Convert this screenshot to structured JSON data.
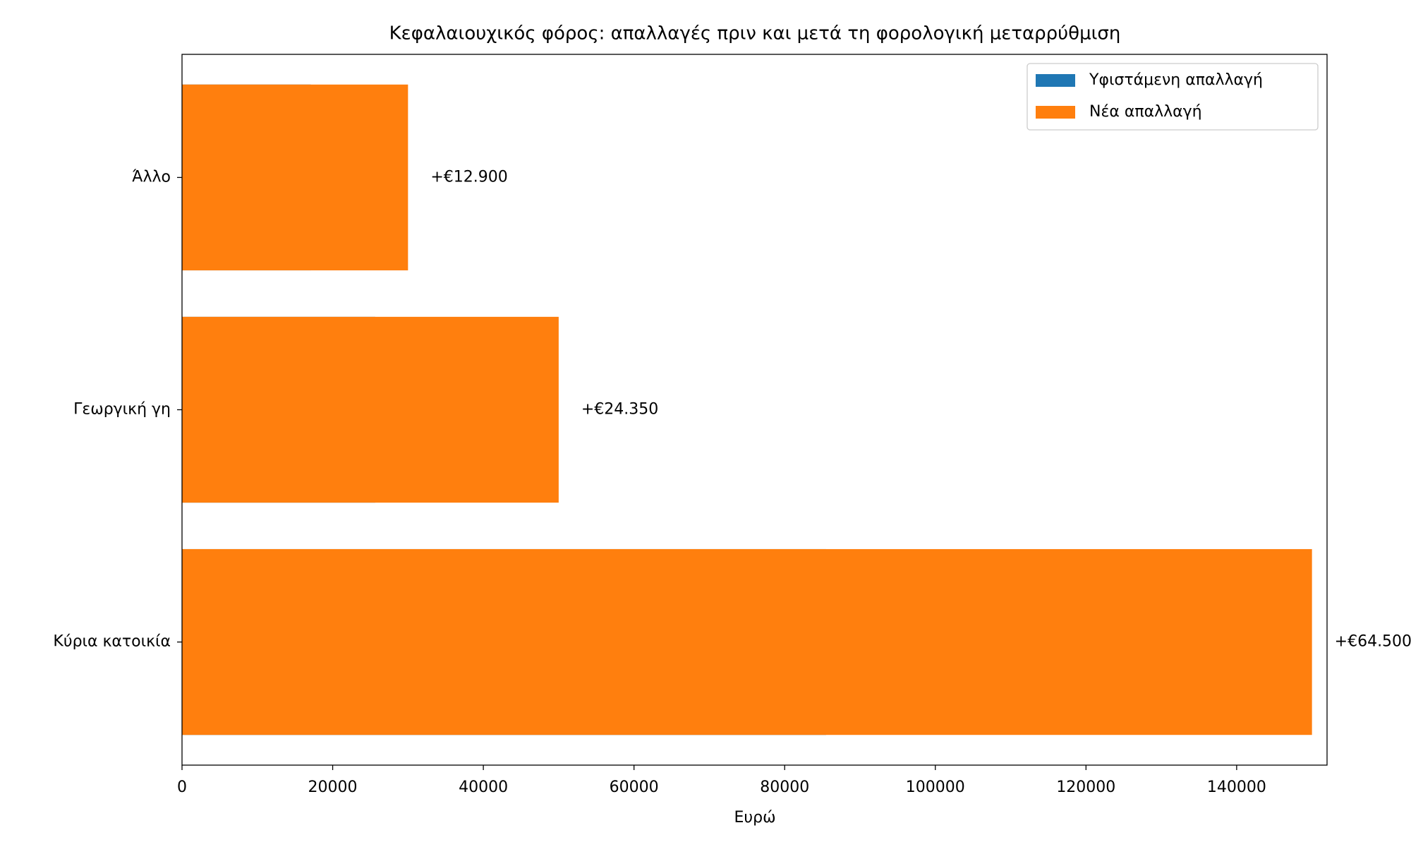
{
  "chart_data": {
    "type": "barh",
    "title": "Κεφαλαιουχικός φόρος: απαλλαγές πριν και μετά τη φορολογική μεταρρύθμιση",
    "xlabel": "Ευρώ",
    "categories": [
      "Κύρια κατοικία",
      "Γεωργική γη",
      "Άλλο"
    ],
    "series": [
      {
        "name": "Υφιστάμενη απαλλαγή",
        "color": "#1f77b4",
        "values": [
          85500,
          25650,
          17100
        ]
      },
      {
        "name": "Νέα απαλλαγή",
        "color": "#ff7f0e",
        "values": [
          150000,
          50000,
          30000
        ]
      }
    ],
    "annotations": [
      {
        "value": 64500,
        "label": "+€64.500"
      },
      {
        "value": 24350,
        "label": "+€24.350"
      },
      {
        "value": 12900,
        "label": "+€12.900"
      }
    ],
    "xlim": [
      0,
      152000
    ],
    "xticks": [
      0,
      20000,
      40000,
      60000,
      80000,
      100000,
      120000,
      140000
    ],
    "legend": "upper right"
  }
}
